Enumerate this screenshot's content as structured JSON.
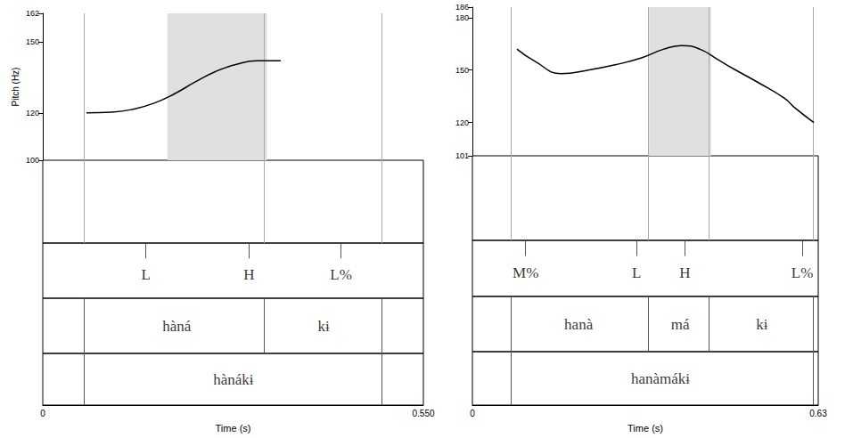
{
  "chart_data": [
    {
      "type": "line",
      "y_label": "Pitch (Hz)",
      "x_label": "Time (s)",
      "color": "#000000",
      "x": [
        0.063,
        0.1,
        0.13,
        0.16,
        0.19,
        0.22,
        0.25,
        0.28,
        0.31,
        0.344
      ],
      "values": [
        120,
        120.3,
        121.5,
        124,
        128,
        133,
        137.5,
        140.5,
        142,
        142
      ],
      "xlim": [
        0,
        0.55
      ],
      "xticks": [
        0,
        {
          "value": 0.55,
          "label": "0.550"
        }
      ],
      "ylim": [
        100,
        162
      ],
      "yticks": [
        100,
        120,
        150,
        162
      ],
      "highlight": [
        0.18,
        0.324
      ],
      "tiers": [
        {
          "points": [
            {
              "time": 0.149,
              "text": "L"
            },
            {
              "time": 0.298,
              "text": "H"
            },
            {
              "time": 0.431,
              "text": "L%"
            }
          ]
        },
        {
          "intervals": [
            {
              "start": 0.063,
              "end": 0.324,
              "text": "hàná"
            },
            {
              "start": 0.324,
              "end": 0.488,
              "text": "kɨ"
            }
          ]
        },
        {
          "intervals": [
            {
              "start": 0.063,
              "end": 0.488,
              "text": "hànákɨ"
            }
          ]
        }
      ]
    },
    {
      "type": "line",
      "x_label": "Time (s)",
      "color": "#000000",
      "x": [
        0.081,
        0.114,
        0.162,
        0.211,
        0.26,
        0.308,
        0.349,
        0.382,
        0.414,
        0.447,
        0.474,
        0.52,
        0.568,
        0.589,
        0.622
      ],
      "values": [
        162,
        155,
        148,
        150,
        153,
        157,
        162,
        164,
        162,
        156,
        151,
        143,
        134,
        128,
        120
      ],
      "xlim": [
        0,
        0.63
      ],
      "xticks": [
        0,
        0.63
      ],
      "ylim": [
        101,
        186
      ],
      "yticks": [
        101,
        120,
        150,
        180,
        186
      ],
      "highlight": [
        0.322,
        0.435
      ],
      "tiers": [
        {
          "points": [
            {
              "time": 0.097,
              "text": "M%"
            },
            {
              "time": 0.299,
              "text": "L"
            },
            {
              "time": 0.387,
              "text": "H"
            },
            {
              "time": 0.601,
              "text": "L%"
            }
          ]
        },
        {
          "intervals": [
            {
              "start": 0.065,
              "end": 0.322,
              "text": "hanà"
            },
            {
              "start": 0.322,
              "end": 0.435,
              "text": "má"
            },
            {
              "start": 0.435,
              "end": 0.62,
              "text": "kɨ"
            }
          ]
        },
        {
          "intervals": [
            {
              "start": 0.065,
              "end": 0.62,
              "text": "hanàmákɨ"
            }
          ]
        }
      ]
    }
  ]
}
